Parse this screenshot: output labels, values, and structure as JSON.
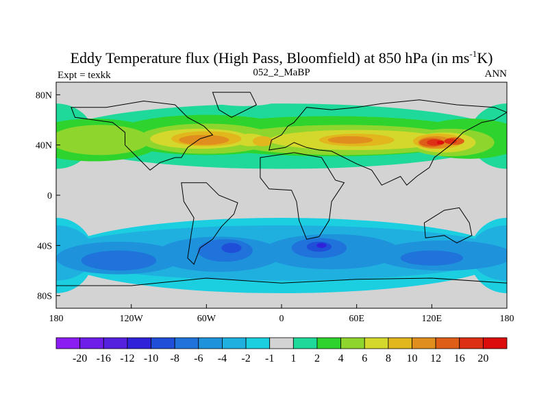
{
  "chart_data": {
    "type": "heatmap",
    "title": "Eddy Temperature flux (High Pass, Bloomfield) at 850 hPa (in ms",
    "title_superscript": "-1",
    "title_end": "K)",
    "left_label": "Expt = texkk",
    "center_label": "052_2_MaBP",
    "right_label": "ANN",
    "x_ticks": [
      "180",
      "120W",
      "60W",
      "0",
      "60E",
      "120E",
      "180"
    ],
    "x_tick_values": [
      -180,
      -120,
      -60,
      0,
      60,
      120,
      180
    ],
    "y_ticks": [
      "80N",
      "40N",
      "0",
      "40S",
      "80S"
    ],
    "y_tick_values": [
      80,
      40,
      0,
      -40,
      -80
    ],
    "xlim": [
      -180,
      180
    ],
    "ylim": [
      -90,
      90
    ],
    "colorbar": {
      "labels": [
        "-20",
        "-16",
        "-12",
        "-10",
        "-8",
        "-6",
        "-4",
        "-2",
        "-1",
        "1",
        "2",
        "4",
        "6",
        "8",
        "10",
        "12",
        "16",
        "20"
      ],
      "colors": [
        "#8c1df2",
        "#6e1ee8",
        "#5520de",
        "#2f22d8",
        "#1f4fd8",
        "#1f73da",
        "#1f92dc",
        "#1fb0e0",
        "#1ccfe0",
        "#d3d3d3",
        "#1fd99b",
        "#2ed42d",
        "#8ed62e",
        "#d4d82c",
        "#e2b61d",
        "#e08e1d",
        "#de5e18",
        "#dc2f14",
        "#da0c0c"
      ]
    },
    "field": {
      "description": "Zonal bands of eddy heat flux: positive (green to red) in northern mid-latitudes, negative (blue) in southern mid-latitudes, near zero (gray) in tropics and poles",
      "nh_band_lat": [
        22,
        72
      ],
      "nh_peak": {
        "lon": 125,
        "lat": 42,
        "value": 20
      },
      "sh_band_lat": [
        -78,
        -22
      ],
      "sh_peak": {
        "lon": 30,
        "lat": -40,
        "value": -10
      }
    }
  },
  "colors": {
    "background": "#ffffff",
    "neutral": "#d3d3d3",
    "coast": "#000000"
  }
}
